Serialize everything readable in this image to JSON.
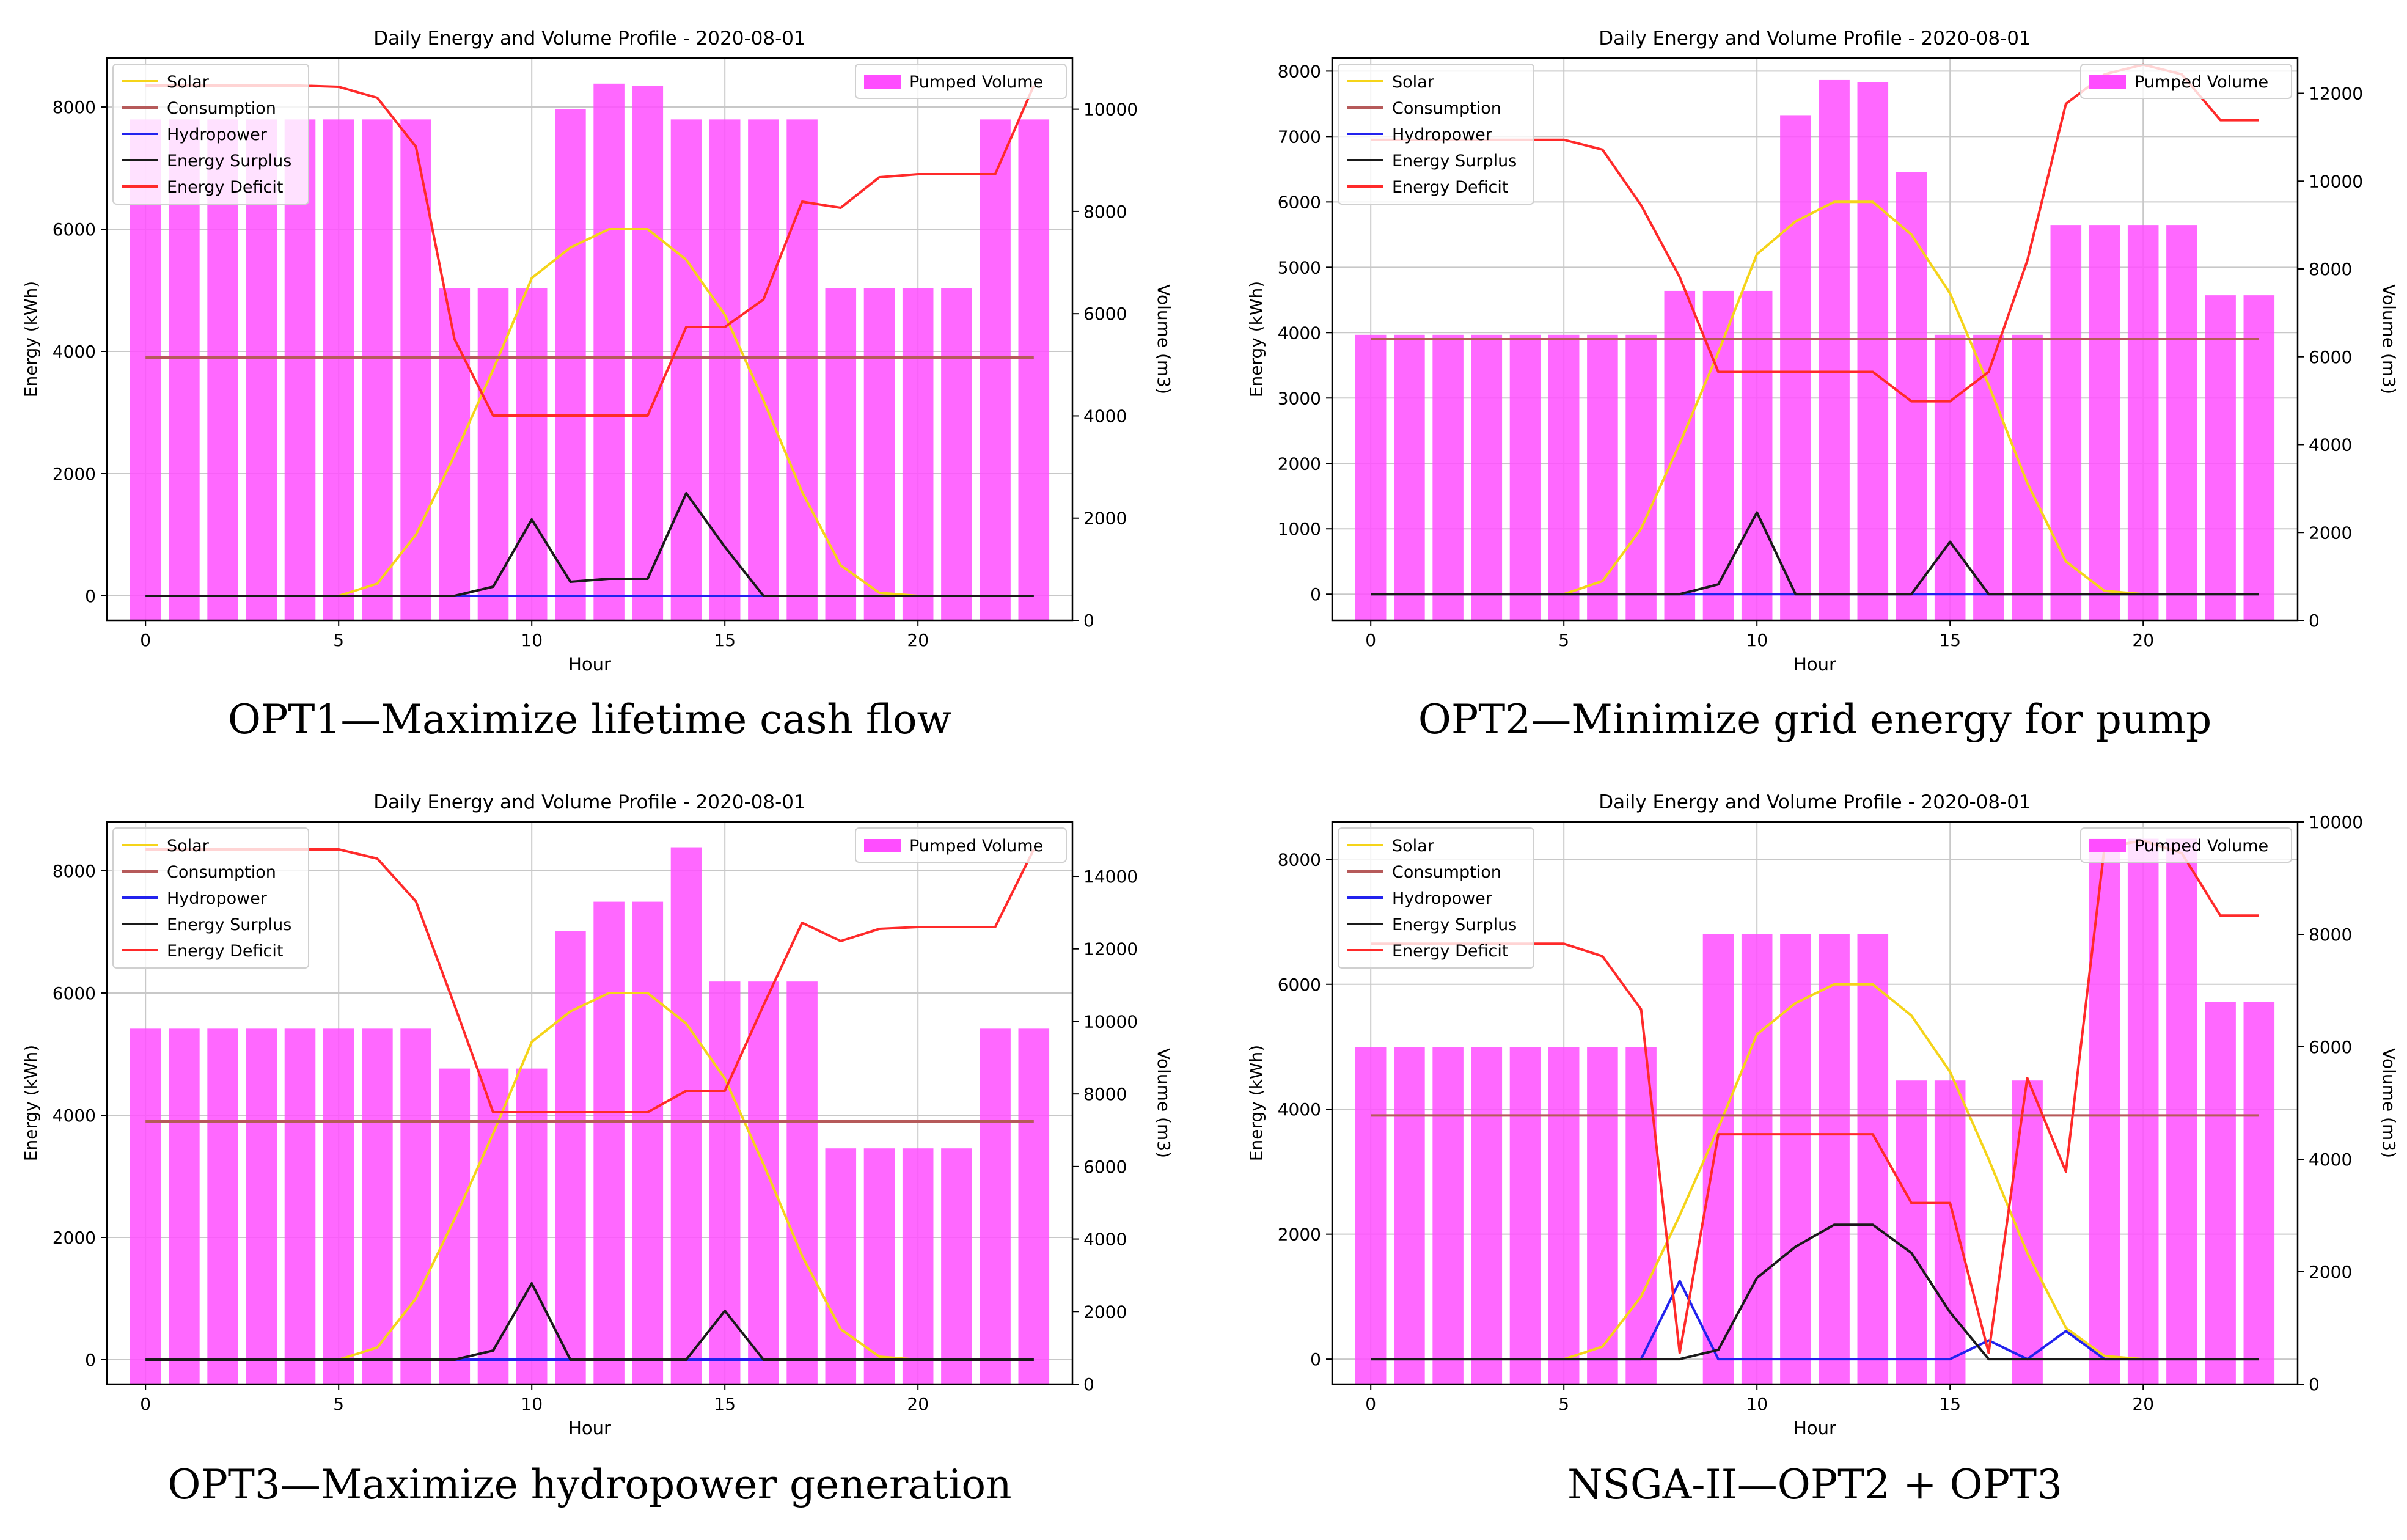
{
  "chart_data": [
    {
      "type": "bar+line",
      "title": "Daily Energy and Volume Profile - 2020-08-01",
      "caption": "OPT1—Maximize lifetime cash flow",
      "xlabel": "Hour",
      "ylabel": "Energy (kWh)",
      "y2label": "Volume (m3)",
      "xlim": [
        -1,
        24
      ],
      "xticks": [
        0,
        5,
        10,
        15,
        20
      ],
      "ylim": [
        -400,
        8800
      ],
      "yticks": [
        0,
        2000,
        4000,
        6000,
        8000
      ],
      "y2lim": [
        0,
        11000
      ],
      "y2ticks": [
        0,
        2000,
        4000,
        6000,
        8000,
        10000
      ],
      "grid": true,
      "legend_left": "upper-left",
      "legend_right": "upper-right",
      "x": [
        0,
        1,
        2,
        3,
        4,
        5,
        6,
        7,
        8,
        9,
        10,
        11,
        12,
        13,
        14,
        15,
        16,
        17,
        18,
        19,
        20,
        21,
        22,
        23
      ],
      "bars": {
        "name": "Pumped Volume",
        "values": [
          9800,
          9800,
          9800,
          9800,
          9800,
          9800,
          9800,
          9800,
          6500,
          6500,
          6500,
          10000,
          10500,
          10450,
          9800,
          9800,
          9800,
          9800,
          6500,
          6500,
          6500,
          6500,
          9800,
          9800
        ]
      },
      "series": [
        {
          "name": "Solar",
          "values": [
            0,
            0,
            0,
            0,
            0,
            0,
            200,
            1000,
            2300,
            3700,
            5200,
            5700,
            6000,
            6000,
            5500,
            4600,
            3200,
            1700,
            500,
            50,
            0,
            0,
            0,
            0
          ]
        },
        {
          "name": "Consumption",
          "values": [
            3900,
            3900,
            3900,
            3900,
            3900,
            3900,
            3900,
            3900,
            3900,
            3900,
            3900,
            3900,
            3900,
            3900,
            3900,
            3900,
            3900,
            3900,
            3900,
            3900,
            3900,
            3900,
            3900,
            3900
          ]
        },
        {
          "name": "Hydropower",
          "values": [
            0,
            0,
            0,
            0,
            0,
            0,
            0,
            0,
            0,
            0,
            0,
            0,
            0,
            0,
            0,
            0,
            0,
            0,
            0,
            0,
            0,
            0,
            0,
            0
          ]
        },
        {
          "name": "Energy Surplus",
          "values": [
            0,
            0,
            0,
            0,
            0,
            0,
            0,
            0,
            0,
            150,
            1250,
            230,
            280,
            280,
            1680,
            800,
            0,
            0,
            0,
            0,
            0,
            0,
            0,
            0
          ]
        },
        {
          "name": "Energy Deficit",
          "values": [
            8350,
            8350,
            8350,
            8350,
            8350,
            8330,
            8150,
            7350,
            4200,
            2950,
            2950,
            2950,
            2950,
            2950,
            4400,
            4400,
            4850,
            6450,
            6350,
            6850,
            6900,
            6900,
            6900,
            8350
          ]
        }
      ]
    },
    {
      "type": "bar+line",
      "title": "Daily Energy and Volume Profile - 2020-08-01",
      "caption": "OPT2—Minimize grid energy for pump",
      "xlabel": "Hour",
      "ylabel": "Energy (kWh)",
      "y2label": "Volume (m3)",
      "xlim": [
        -1,
        24
      ],
      "xticks": [
        0,
        5,
        10,
        15,
        20
      ],
      "ylim": [
        -400,
        8200
      ],
      "yticks": [
        0,
        1000,
        2000,
        3000,
        4000,
        5000,
        6000,
        7000,
        8000
      ],
      "y2lim": [
        0,
        12800
      ],
      "y2ticks": [
        0,
        2000,
        4000,
        6000,
        8000,
        10000,
        12000
      ],
      "grid": true,
      "legend_left": "upper-left",
      "legend_right": "upper-right",
      "x": [
        0,
        1,
        2,
        3,
        4,
        5,
        6,
        7,
        8,
        9,
        10,
        11,
        12,
        13,
        14,
        15,
        16,
        17,
        18,
        19,
        20,
        21,
        22,
        23
      ],
      "bars": {
        "name": "Pumped Volume",
        "values": [
          6500,
          6500,
          6500,
          6500,
          6500,
          6500,
          6500,
          6500,
          7500,
          7500,
          7500,
          11500,
          12300,
          12250,
          10200,
          6500,
          6500,
          6500,
          9000,
          9000,
          9000,
          9000,
          7400,
          7400
        ]
      },
      "series": [
        {
          "name": "Solar",
          "values": [
            0,
            0,
            0,
            0,
            0,
            0,
            200,
            1000,
            2300,
            3700,
            5200,
            5700,
            6000,
            6000,
            5500,
            4600,
            3200,
            1700,
            500,
            50,
            0,
            0,
            0,
            0
          ]
        },
        {
          "name": "Consumption",
          "values": [
            3900,
            3900,
            3900,
            3900,
            3900,
            3900,
            3900,
            3900,
            3900,
            3900,
            3900,
            3900,
            3900,
            3900,
            3900,
            3900,
            3900,
            3900,
            3900,
            3900,
            3900,
            3900,
            3900,
            3900
          ]
        },
        {
          "name": "Hydropower",
          "values": [
            0,
            0,
            0,
            0,
            0,
            0,
            0,
            0,
            0,
            0,
            0,
            0,
            0,
            0,
            0,
            0,
            0,
            0,
            0,
            0,
            0,
            0,
            0,
            0
          ]
        },
        {
          "name": "Energy Surplus",
          "values": [
            0,
            0,
            0,
            0,
            0,
            0,
            0,
            0,
            0,
            150,
            1250,
            0,
            0,
            0,
            0,
            800,
            0,
            0,
            0,
            0,
            0,
            0,
            0,
            0
          ]
        },
        {
          "name": "Energy Deficit",
          "values": [
            6950,
            6950,
            6950,
            6950,
            6950,
            6950,
            6800,
            5950,
            4850,
            3400,
            3400,
            3400,
            3400,
            3400,
            2950,
            2950,
            3400,
            5100,
            7500,
            7950,
            8100,
            7950,
            7250,
            7250
          ]
        }
      ]
    },
    {
      "type": "bar+line",
      "title": "Daily Energy and Volume Profile - 2020-08-01",
      "caption": "OPT3—Maximize hydropower generation",
      "xlabel": "Hour",
      "ylabel": "Energy (kWh)",
      "y2label": "Volume (m3)",
      "xlim": [
        -1,
        24
      ],
      "xticks": [
        0,
        5,
        10,
        15,
        20
      ],
      "ylim": [
        -400,
        8800
      ],
      "yticks": [
        0,
        2000,
        4000,
        6000,
        8000
      ],
      "y2lim": [
        0,
        15500
      ],
      "y2ticks": [
        0,
        2000,
        4000,
        6000,
        8000,
        10000,
        12000,
        14000
      ],
      "grid": true,
      "legend_left": "upper-left",
      "legend_right": "upper-right",
      "x": [
        0,
        1,
        2,
        3,
        4,
        5,
        6,
        7,
        8,
        9,
        10,
        11,
        12,
        13,
        14,
        15,
        16,
        17,
        18,
        19,
        20,
        21,
        22,
        23
      ],
      "bars": {
        "name": "Pumped Volume",
        "values": [
          9800,
          9800,
          9800,
          9800,
          9800,
          9800,
          9800,
          9800,
          8700,
          8700,
          8700,
          12500,
          13300,
          13300,
          14800,
          11100,
          11100,
          11100,
          6500,
          6500,
          6500,
          6500,
          9800,
          9800
        ]
      },
      "series": [
        {
          "name": "Solar",
          "values": [
            0,
            0,
            0,
            0,
            0,
            0,
            200,
            1000,
            2300,
            3700,
            5200,
            5700,
            6000,
            6000,
            5500,
            4600,
            3200,
            1700,
            500,
            50,
            0,
            0,
            0,
            0
          ]
        },
        {
          "name": "Consumption",
          "values": [
            3900,
            3900,
            3900,
            3900,
            3900,
            3900,
            3900,
            3900,
            3900,
            3900,
            3900,
            3900,
            3900,
            3900,
            3900,
            3900,
            3900,
            3900,
            3900,
            3900,
            3900,
            3900,
            3900,
            3900
          ]
        },
        {
          "name": "Hydropower",
          "values": [
            0,
            0,
            0,
            0,
            0,
            0,
            0,
            0,
            0,
            0,
            0,
            0,
            0,
            0,
            0,
            0,
            0,
            0,
            0,
            0,
            0,
            0,
            0,
            0
          ]
        },
        {
          "name": "Energy Surplus",
          "values": [
            0,
            0,
            0,
            0,
            0,
            0,
            0,
            0,
            0,
            150,
            1250,
            0,
            0,
            0,
            0,
            800,
            0,
            0,
            0,
            0,
            0,
            0,
            0,
            0
          ]
        },
        {
          "name": "Energy Deficit",
          "values": [
            8350,
            8350,
            8350,
            8350,
            8350,
            8350,
            8200,
            7500,
            5800,
            4050,
            4050,
            4050,
            4050,
            4050,
            4400,
            4400,
            5800,
            7150,
            6850,
            7050,
            7080,
            7080,
            7080,
            8350
          ]
        }
      ]
    },
    {
      "type": "bar+line",
      "title": "Daily Energy and Volume Profile - 2020-08-01",
      "caption": "NSGA-II—OPT2 + OPT3",
      "xlabel": "Hour",
      "ylabel": "Energy (kWh)",
      "y2label": "Volume (m3)",
      "xlim": [
        -1,
        24
      ],
      "xticks": [
        0,
        5,
        10,
        15,
        20
      ],
      "ylim": [
        -400,
        8600
      ],
      "yticks": [
        0,
        2000,
        4000,
        6000,
        8000
      ],
      "y2lim": [
        0,
        10000
      ],
      "y2ticks": [
        0,
        2000,
        4000,
        6000,
        8000,
        10000
      ],
      "grid": true,
      "legend_left": "upper-left",
      "legend_right": "upper-right",
      "x": [
        0,
        1,
        2,
        3,
        4,
        5,
        6,
        7,
        8,
        9,
        10,
        11,
        12,
        13,
        14,
        15,
        16,
        17,
        18,
        19,
        20,
        21,
        22,
        23
      ],
      "bars": {
        "name": "Pumped Volume",
        "values": [
          6000,
          6000,
          6000,
          6000,
          6000,
          6000,
          6000,
          6000,
          0,
          8000,
          8000,
          8000,
          8000,
          8000,
          5400,
          5400,
          0,
          5400,
          0,
          9700,
          9700,
          9700,
          6800,
          6800
        ]
      },
      "series": [
        {
          "name": "Solar",
          "values": [
            0,
            0,
            0,
            0,
            0,
            0,
            200,
            1000,
            2300,
            3700,
            5200,
            5700,
            6000,
            6000,
            5500,
            4600,
            3200,
            1700,
            500,
            50,
            0,
            0,
            0,
            0
          ]
        },
        {
          "name": "Consumption",
          "values": [
            3900,
            3900,
            3900,
            3900,
            3900,
            3900,
            3900,
            3900,
            3900,
            3900,
            3900,
            3900,
            3900,
            3900,
            3900,
            3900,
            3900,
            3900,
            3900,
            3900,
            3900,
            3900,
            3900,
            3900
          ]
        },
        {
          "name": "Hydropower",
          "values": [
            0,
            0,
            0,
            0,
            0,
            0,
            0,
            0,
            1250,
            0,
            0,
            0,
            0,
            0,
            0,
            0,
            300,
            0,
            450,
            0,
            0,
            0,
            0,
            0
          ]
        },
        {
          "name": "Energy Surplus",
          "values": [
            0,
            0,
            0,
            0,
            0,
            0,
            0,
            0,
            0,
            150,
            1300,
            1800,
            2150,
            2150,
            1700,
            750,
            0,
            0,
            0,
            0,
            0,
            0,
            0,
            0
          ]
        },
        {
          "name": "Energy Deficit",
          "values": [
            6650,
            6650,
            6650,
            6650,
            6650,
            6650,
            6450,
            5600,
            100,
            3600,
            3600,
            3600,
            3600,
            3600,
            2500,
            2500,
            100,
            4500,
            3000,
            8200,
            8300,
            8100,
            7100,
            7100
          ]
        }
      ]
    }
  ],
  "colors": {
    "Solar": "#f5d419",
    "Consumption": "#b65a5a",
    "Hydropower": "#2222ee",
    "Energy Surplus": "#1a1a1a",
    "Energy Deficit": "#ff2a2a",
    "Pumped Volume": "#ff4dff",
    "grid": "#c8c8c8"
  }
}
